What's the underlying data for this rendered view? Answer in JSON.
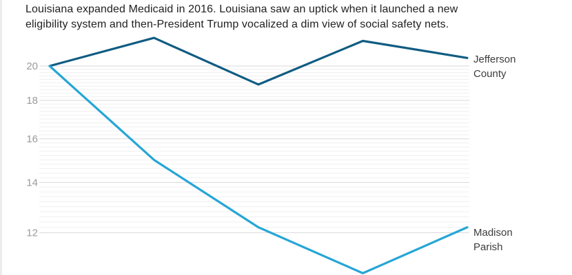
{
  "intro": {
    "lines": [
      "Louisiana expanded Medicaid in 2016. Louisiana saw an uptick when it launched a new",
      "eligibility system and then-President Trump vocalized a dim view of social safety nets."
    ]
  },
  "chart_data": {
    "type": "line",
    "title": "",
    "description": "Louisiana expanded Medicaid in 2016. Louisiana saw an uptick when it launched a new eligibility system and then-President Trump vocalized a dim view of social safety nets.",
    "y_scale": "log",
    "y_ticks": [
      20,
      18,
      16,
      14,
      12
    ],
    "y_minor_step": 0.2,
    "y_gridline_range": [
      12,
      20
    ],
    "x_labels_visible": false,
    "legend_position": "direct-right",
    "series": [
      {
        "name": "Jefferson County",
        "color": "#105c82",
        "values": [
          20.0,
          21.8,
          18.9,
          21.6,
          20.5
        ]
      },
      {
        "name": "Madison Parish",
        "color": "#26a6d6",
        "values": [
          20.0,
          15.0,
          12.2,
          10.6,
          12.2
        ]
      }
    ]
  }
}
